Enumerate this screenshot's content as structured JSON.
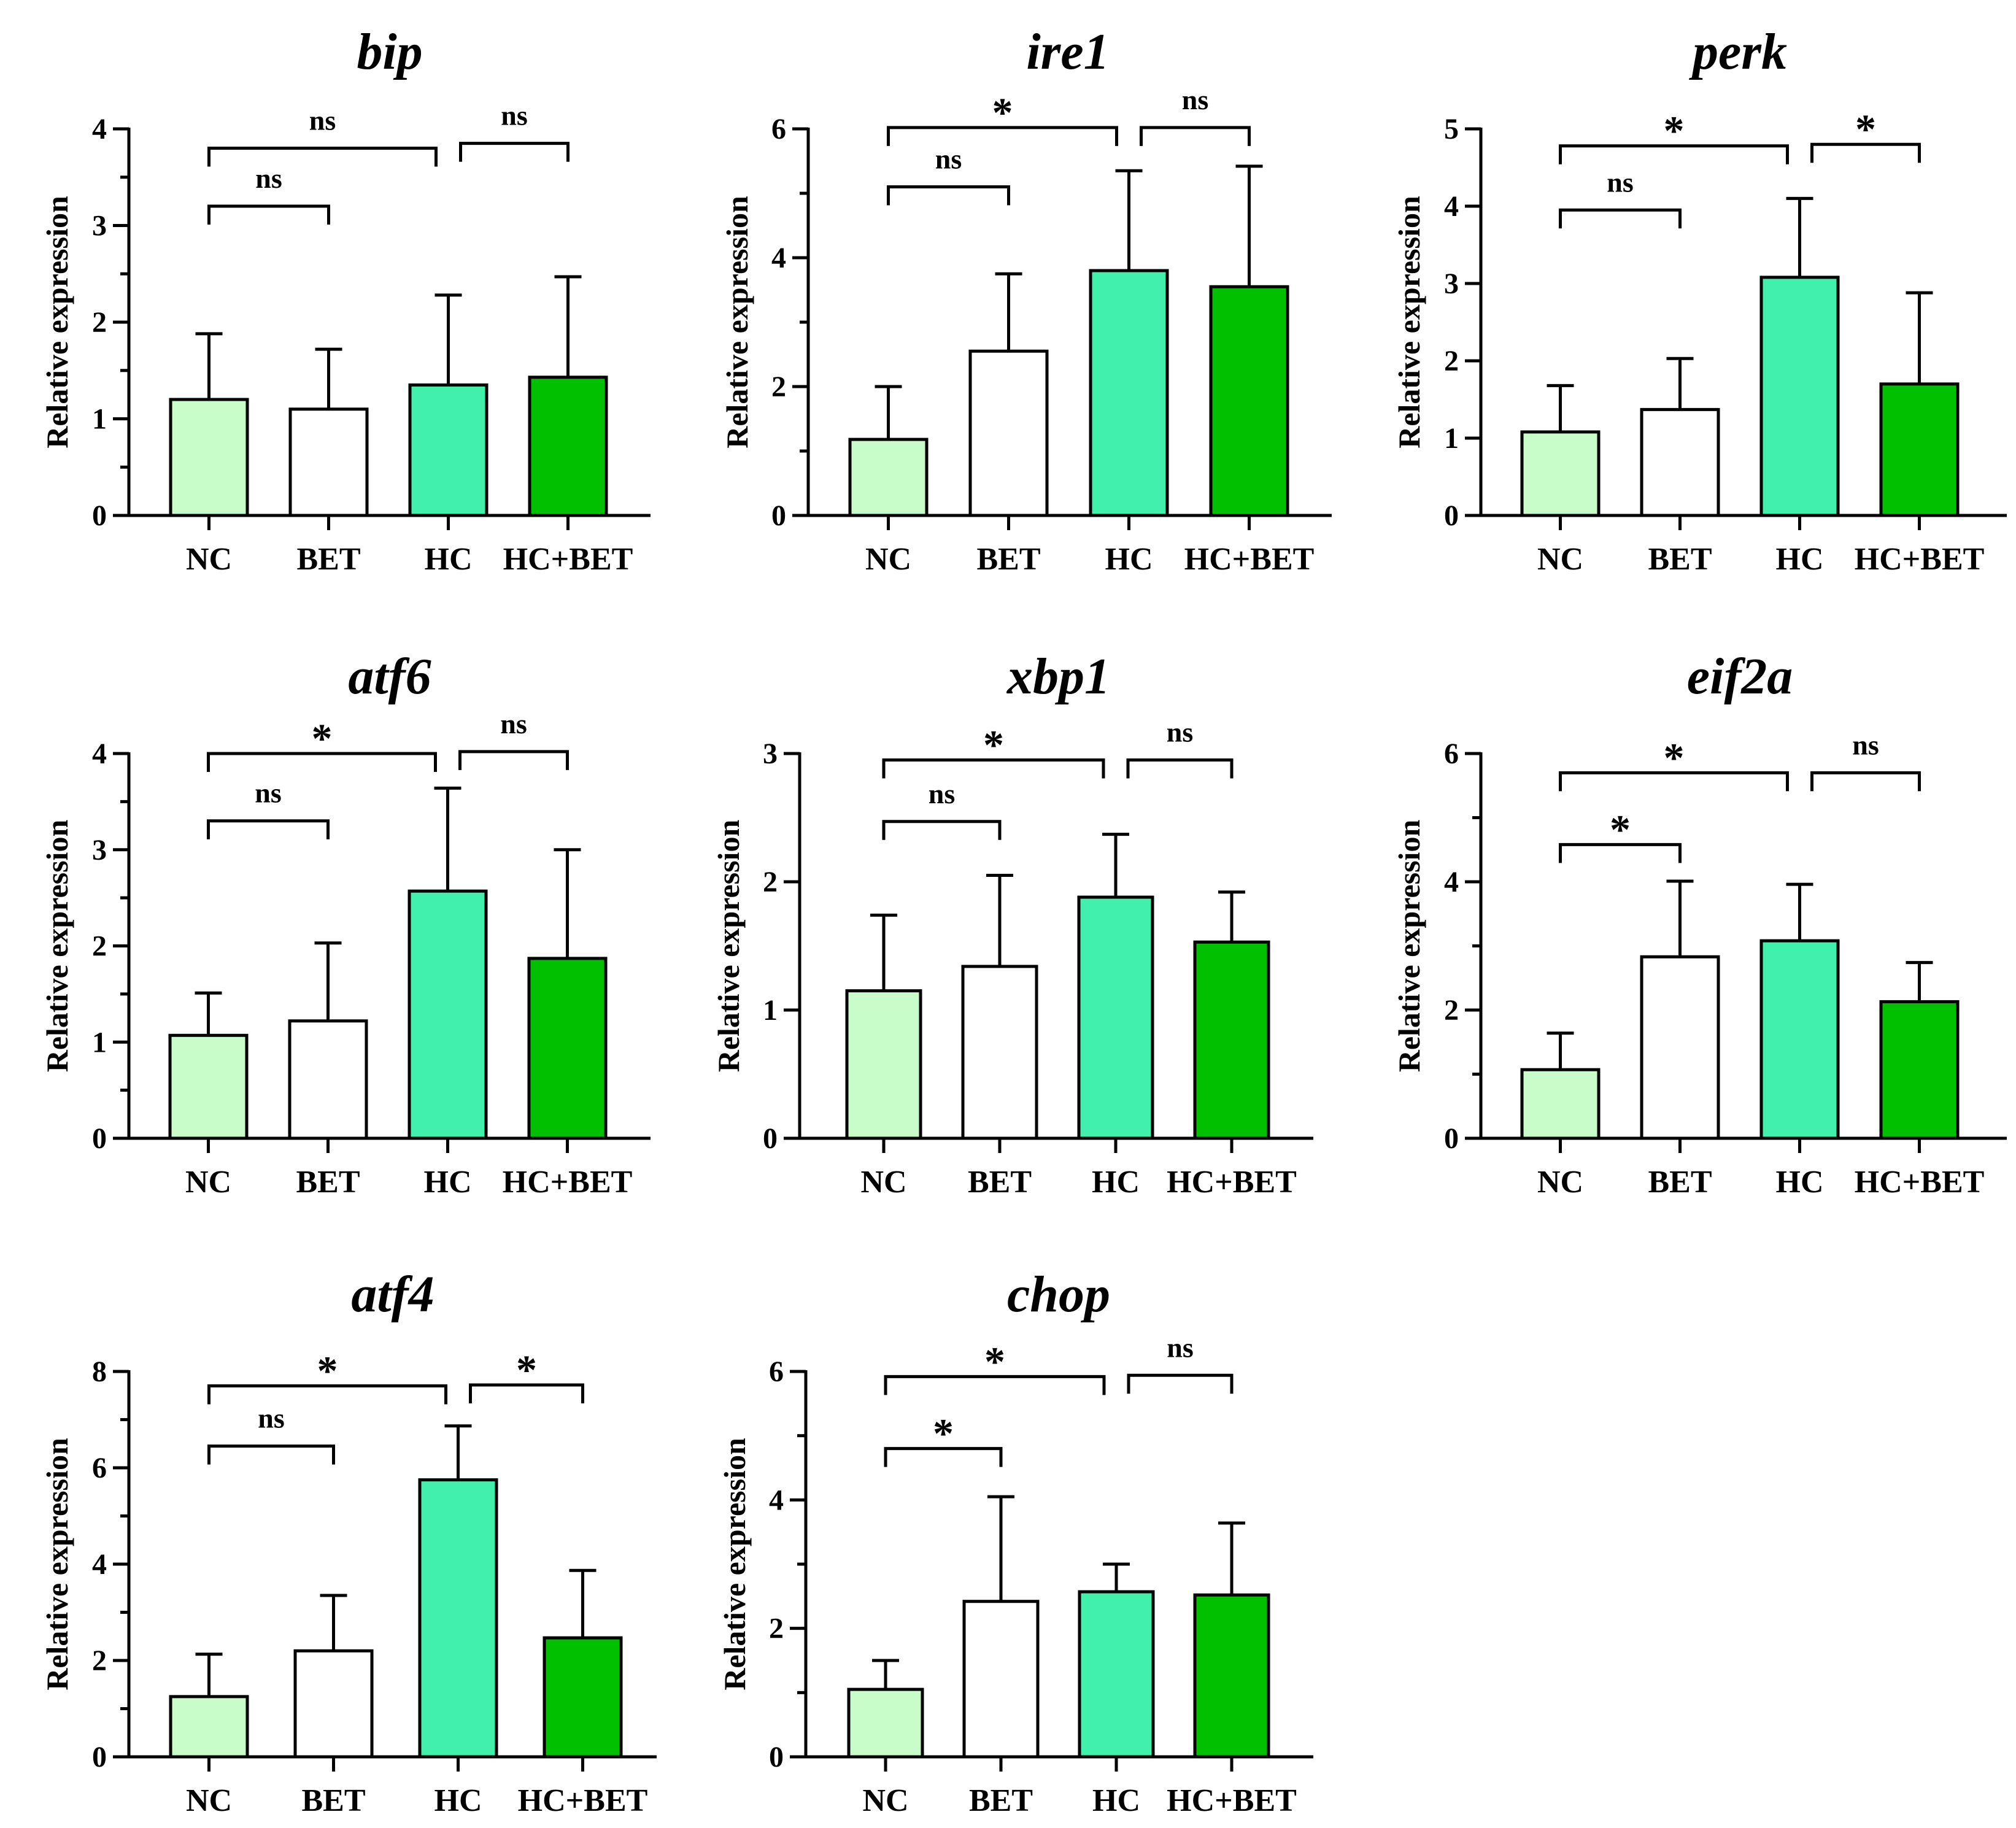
{
  "colors": {
    "NC": "#c8fcc8",
    "BET": "#ffffff",
    "HC": "#41f0aa",
    "HC+BET": "#00c000",
    "stroke": "#000000"
  },
  "chart_data": [
    {
      "type": "bar",
      "title": "bip",
      "ylabel": "Relative expression",
      "categories": [
        "NC",
        "BET",
        "HC",
        "HC+BET"
      ],
      "values": [
        1.2,
        1.1,
        1.35,
        1.43
      ],
      "errors": [
        0.68,
        0.62,
        0.93,
        1.04
      ],
      "ylim": [
        0,
        4
      ],
      "yticks": [
        0,
        1,
        2,
        3,
        4
      ],
      "minor": true,
      "brackets": [
        {
          "from": 0,
          "to": 1,
          "y": 3.2,
          "label": "ns"
        },
        {
          "from": 0,
          "to": 2,
          "y": 3.8,
          "label": "ns"
        },
        {
          "from": 2,
          "to": 3,
          "y": 3.85,
          "label": "ns"
        }
      ]
    },
    {
      "type": "bar",
      "title": "ire1",
      "ylabel": "Relative expression",
      "categories": [
        "NC",
        "BET",
        "HC",
        "HC+BET"
      ],
      "values": [
        1.18,
        2.55,
        3.8,
        3.55
      ],
      "errors": [
        0.82,
        1.2,
        1.55,
        1.87
      ],
      "ylim": [
        0,
        6
      ],
      "yticks": [
        0,
        2,
        4,
        6
      ],
      "minor": true,
      "brackets": [
        {
          "from": 0,
          "to": 1,
          "y": 5.1,
          "label": "ns"
        },
        {
          "from": 0,
          "to": 2,
          "y": 6.02,
          "label": "*"
        },
        {
          "from": 2,
          "to": 3,
          "y": 6.02,
          "label": "ns"
        }
      ]
    },
    {
      "type": "bar",
      "title": "perk",
      "ylabel": "Relative expression",
      "categories": [
        "NC",
        "BET",
        "HC",
        "HC+BET"
      ],
      "values": [
        1.08,
        1.37,
        3.08,
        1.7
      ],
      "errors": [
        0.6,
        0.66,
        1.02,
        1.18
      ],
      "ylim": [
        0,
        5
      ],
      "yticks": [
        0,
        1,
        2,
        3,
        4,
        5
      ],
      "minor": false,
      "brackets": [
        {
          "from": 0,
          "to": 1,
          "y": 3.95,
          "label": "ns"
        },
        {
          "from": 0,
          "to": 2,
          "y": 4.78,
          "label": "*"
        },
        {
          "from": 2,
          "to": 3,
          "y": 4.8,
          "label": "*"
        }
      ]
    },
    {
      "type": "bar",
      "title": "atf6",
      "ylabel": "Relative expression",
      "categories": [
        "NC",
        "BET",
        "HC",
        "HC+BET"
      ],
      "values": [
        1.07,
        1.22,
        2.57,
        1.87
      ],
      "errors": [
        0.44,
        0.81,
        1.07,
        1.13
      ],
      "ylim": [
        0,
        4
      ],
      "yticks": [
        0,
        1,
        2,
        3,
        4
      ],
      "minor": true,
      "brackets": [
        {
          "from": 0,
          "to": 1,
          "y": 3.3,
          "label": "ns"
        },
        {
          "from": 0,
          "to": 2,
          "y": 4.0,
          "label": "*"
        },
        {
          "from": 2,
          "to": 3,
          "y": 4.02,
          "label": "ns"
        }
      ]
    },
    {
      "type": "bar",
      "title": "xbp1",
      "ylabel": "Relative expression",
      "categories": [
        "NC",
        "BET",
        "HC",
        "HC+BET"
      ],
      "values": [
        1.15,
        1.34,
        1.88,
        1.53
      ],
      "errors": [
        0.59,
        0.71,
        0.49,
        0.39
      ],
      "ylim": [
        0,
        3
      ],
      "yticks": [
        0,
        1,
        2,
        3
      ],
      "minor": false,
      "brackets": [
        {
          "from": 0,
          "to": 1,
          "y": 2.47,
          "label": "ns"
        },
        {
          "from": 0,
          "to": 2,
          "y": 2.95,
          "label": "*"
        },
        {
          "from": 2,
          "to": 3,
          "y": 2.95,
          "label": "ns"
        }
      ]
    },
    {
      "type": "bar",
      "title": "eif2a",
      "ylabel": "Relative expression",
      "categories": [
        "NC",
        "BET",
        "HC",
        "HC+BET"
      ],
      "values": [
        1.07,
        2.83,
        3.08,
        2.13
      ],
      "errors": [
        0.57,
        1.18,
        0.88,
        0.61
      ],
      "ylim": [
        0,
        6
      ],
      "yticks": [
        0,
        2,
        4,
        6
      ],
      "minor": true,
      "brackets": [
        {
          "from": 0,
          "to": 1,
          "y": 4.58,
          "label": "*"
        },
        {
          "from": 0,
          "to": 2,
          "y": 5.7,
          "label": "*"
        },
        {
          "from": 2,
          "to": 3,
          "y": 5.7,
          "label": "ns"
        }
      ]
    },
    {
      "type": "bar",
      "title": "atf4",
      "ylabel": "Relative expression",
      "categories": [
        "NC",
        "BET",
        "HC",
        "HC+BET"
      ],
      "values": [
        1.25,
        2.2,
        5.75,
        2.47
      ],
      "errors": [
        0.88,
        1.15,
        1.12,
        1.4
      ],
      "ylim": [
        0,
        8
      ],
      "yticks": [
        0,
        2,
        4,
        6,
        8
      ],
      "minor": true,
      "brackets": [
        {
          "from": 0,
          "to": 1,
          "y": 6.45,
          "label": "ns"
        },
        {
          "from": 0,
          "to": 2,
          "y": 7.7,
          "label": "*"
        },
        {
          "from": 2,
          "to": 3,
          "y": 7.72,
          "label": "*"
        }
      ]
    },
    {
      "type": "bar",
      "title": "chop",
      "ylabel": "Relative expression",
      "categories": [
        "NC",
        "BET",
        "HC",
        "HC+BET"
      ],
      "values": [
        1.05,
        2.42,
        2.57,
        2.52
      ],
      "errors": [
        0.45,
        1.63,
        0.43,
        1.12
      ],
      "ylim": [
        0,
        6
      ],
      "yticks": [
        0,
        2,
        4,
        6
      ],
      "minor": true,
      "brackets": [
        {
          "from": 0,
          "to": 1,
          "y": 4.8,
          "label": "*"
        },
        {
          "from": 0,
          "to": 2,
          "y": 5.92,
          "label": "*"
        },
        {
          "from": 2,
          "to": 3,
          "y": 5.94,
          "label": "ns"
        }
      ]
    }
  ]
}
